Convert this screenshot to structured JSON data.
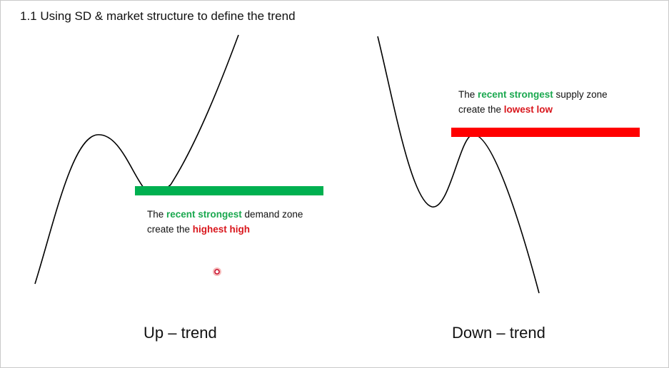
{
  "title": "1.1 Using SD & market structure to define the trend",
  "colors": {
    "demand_zone": "#00b050",
    "supply_zone": "#ff0000",
    "highlight_green": "#1aa84f",
    "highlight_red": "#d9161c",
    "curve": "#000000"
  },
  "uptrend": {
    "caption": "Up – trend",
    "note": {
      "line1_pre": "The ",
      "line1_highlight": "recent strongest",
      "line1_post": " demand zone",
      "line2_pre": "create the ",
      "line2_highlight": "highest high"
    }
  },
  "downtrend": {
    "caption": "Down – trend",
    "note": {
      "line1_pre": "The ",
      "line1_highlight": "recent strongest",
      "line1_post": " supply zone",
      "line2_pre": "create the ",
      "line2_highlight": "lowest low"
    }
  }
}
